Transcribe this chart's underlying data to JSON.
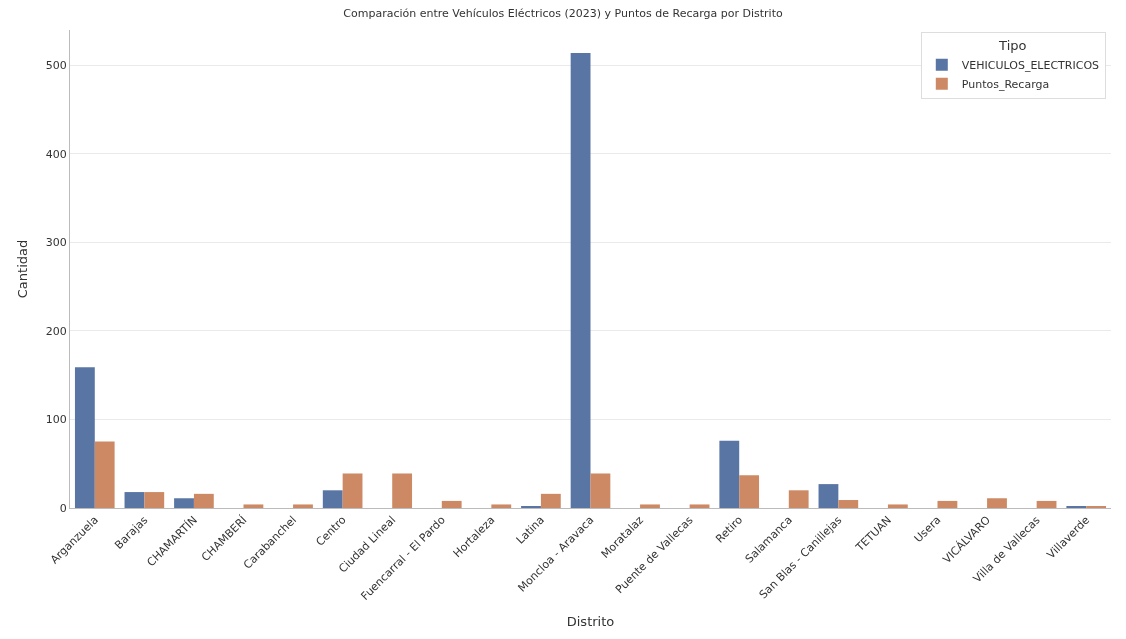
{
  "chart_data": {
    "type": "bar",
    "title": "Comparación entre Vehículos Eléctricos (2023) y Puntos de Recarga por Distrito",
    "xlabel": "Distrito",
    "ylabel": "Cantidad",
    "legend_title": "Tipo",
    "categories": [
      "Arganzuela",
      "Barajas",
      "CHAMARTÍN",
      "CHAMBERÍ",
      "Carabanchel",
      "Centro",
      "Ciudad Lineal",
      "Fuencarral - El Pardo",
      "Hortaleza",
      "Latina",
      "Moncloa - Aravaca",
      "Moratalaz",
      "Puente de Vallecas",
      "Retiro",
      "Salamanca",
      "San Blas - Canillejas",
      "TETUAN",
      "Usera",
      "VICÁLVARO",
      "Villa de Vallecas",
      "Villaverde"
    ],
    "series": [
      {
        "name": "VEHICULOS_ELECTRICOS",
        "color": "#5975a4",
        "values": [
          159,
          18,
          11,
          0,
          0,
          20,
          0,
          0,
          0,
          2,
          514,
          0,
          0,
          76,
          0,
          27,
          0,
          0,
          0,
          0,
          2
        ]
      },
      {
        "name": "Puntos_Recarga",
        "color": "#cc8963",
        "values": [
          75,
          18,
          16,
          4,
          4,
          39,
          39,
          8,
          4,
          16,
          39,
          4,
          4,
          37,
          20,
          9,
          4,
          8,
          11,
          8,
          2
        ]
      }
    ],
    "ylim": [
      0,
      540
    ],
    "yticks": [
      0,
      100,
      200,
      300,
      400,
      500
    ],
    "grid": "y",
    "legend": "top right"
  }
}
